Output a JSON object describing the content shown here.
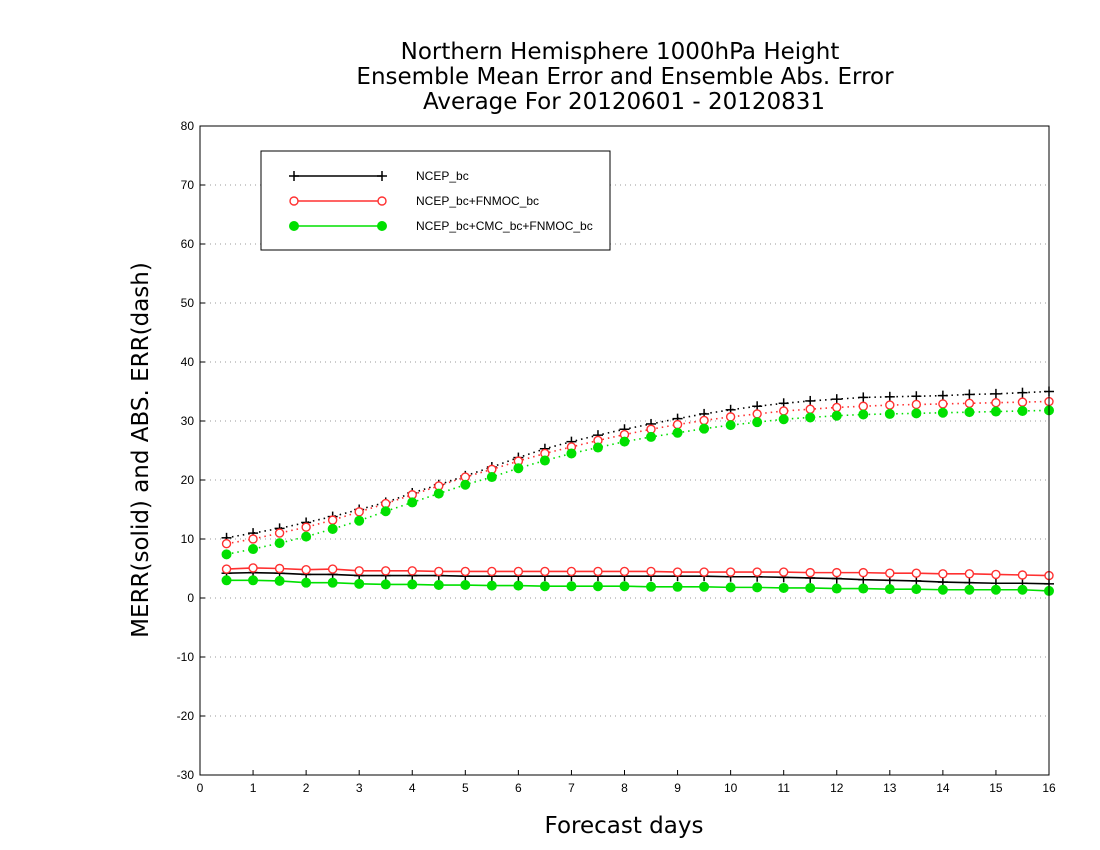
{
  "chart_data": {
    "type": "line",
    "title": [
      "Northern Hemisphere 1000hPa Height",
      "Ensemble Mean Error and Ensemble Abs. Error",
      "Average For 20120601 - 20120831"
    ],
    "xlabel": "Forecast days",
    "ylabel": "MERR(solid) and ABS. ERR(dash)",
    "xlim": [
      0,
      16
    ],
    "ylim": [
      -30,
      80
    ],
    "xticks": [
      0,
      1,
      2,
      3,
      4,
      5,
      6,
      7,
      8,
      9,
      10,
      11,
      12,
      13,
      14,
      15,
      16
    ],
    "yticks": [
      -30,
      -20,
      -10,
      0,
      10,
      20,
      30,
      40,
      50,
      60,
      70,
      80
    ],
    "grid": "horizontal-dotted",
    "legend_position": "top-left",
    "x": [
      0.5,
      1,
      1.5,
      2,
      2.5,
      3,
      3.5,
      4,
      4.5,
      5,
      5.5,
      6,
      6.5,
      7,
      7.5,
      8,
      8.5,
      9,
      9.5,
      10,
      10.5,
      11,
      11.5,
      12,
      12.5,
      13,
      13.5,
      14,
      14.5,
      15,
      15.5,
      16
    ],
    "series": [
      {
        "name": "NCEP_bc",
        "color": "#000000",
        "marker": "plus",
        "merr": [
          4.2,
          4.3,
          4.2,
          4.0,
          4.0,
          3.8,
          3.8,
          3.8,
          3.8,
          3.7,
          3.7,
          3.7,
          3.7,
          3.7,
          3.7,
          3.7,
          3.7,
          3.7,
          3.7,
          3.6,
          3.6,
          3.5,
          3.4,
          3.3,
          3.1,
          3.0,
          2.9,
          2.7,
          2.6,
          2.5,
          2.5,
          2.4
        ],
        "abs_err": [
          10.2,
          11.0,
          11.8,
          12.8,
          13.8,
          15.0,
          16.2,
          17.8,
          19.2,
          20.7,
          22.2,
          23.8,
          25.3,
          26.5,
          27.6,
          28.6,
          29.5,
          30.4,
          31.2,
          31.9,
          32.5,
          33.0,
          33.4,
          33.7,
          34.0,
          34.1,
          34.2,
          34.3,
          34.5,
          34.6,
          34.8,
          35.0
        ]
      },
      {
        "name": "NCEP_bc+FNMOC_bc",
        "color": "#ff3030",
        "marker": "open-circle",
        "merr": [
          4.9,
          5.1,
          5.0,
          4.8,
          4.9,
          4.6,
          4.6,
          4.6,
          4.5,
          4.5,
          4.5,
          4.5,
          4.5,
          4.5,
          4.5,
          4.5,
          4.5,
          4.4,
          4.4,
          4.4,
          4.4,
          4.4,
          4.3,
          4.3,
          4.3,
          4.2,
          4.2,
          4.1,
          4.1,
          4.0,
          3.9,
          3.8
        ],
        "abs_err": [
          9.2,
          10.0,
          11.0,
          12.0,
          13.2,
          14.6,
          16.0,
          17.5,
          19.0,
          20.5,
          21.8,
          23.2,
          24.5,
          25.6,
          26.7,
          27.7,
          28.6,
          29.4,
          30.1,
          30.7,
          31.2,
          31.7,
          32.0,
          32.3,
          32.5,
          32.7,
          32.8,
          32.9,
          33.0,
          33.1,
          33.2,
          33.3
        ]
      },
      {
        "name": "NCEP_bc+CMC_bc+FNMOC_bc",
        "color": "#00e000",
        "marker": "filled-circle",
        "merr": [
          3.0,
          3.0,
          2.9,
          2.6,
          2.6,
          2.4,
          2.3,
          2.3,
          2.2,
          2.2,
          2.1,
          2.1,
          2.0,
          2.0,
          2.0,
          2.0,
          1.9,
          1.9,
          1.9,
          1.8,
          1.8,
          1.7,
          1.7,
          1.6,
          1.6,
          1.5,
          1.5,
          1.4,
          1.4,
          1.4,
          1.4,
          1.2
        ],
        "abs_err": [
          7.4,
          8.3,
          9.3,
          10.4,
          11.7,
          13.1,
          14.7,
          16.2,
          17.7,
          19.2,
          20.5,
          22.0,
          23.3,
          24.5,
          25.5,
          26.5,
          27.3,
          28.0,
          28.7,
          29.3,
          29.8,
          30.3,
          30.6,
          30.9,
          31.1,
          31.2,
          31.3,
          31.4,
          31.5,
          31.6,
          31.7,
          31.8
        ]
      }
    ]
  }
}
